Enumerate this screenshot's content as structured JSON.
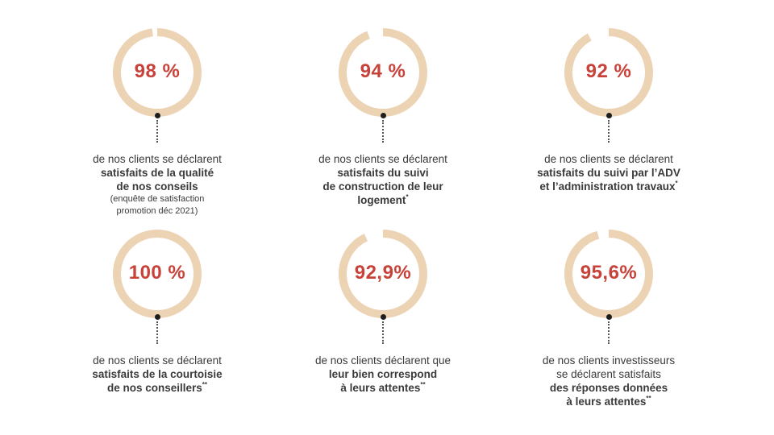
{
  "colors": {
    "ring": "#ecd3b3",
    "percent": "#c8423a",
    "text": "#3a3a3a",
    "connector": "#1e1e1e"
  },
  "stats": [
    {
      "percent_label": "98 %",
      "value": 98,
      "lines": [
        {
          "text": "de nos clients se déclarent",
          "bold": false
        },
        {
          "text": "satisfaits de la qualité",
          "bold": true
        },
        {
          "text": "de nos conseils",
          "bold": true
        }
      ],
      "note_lines": [
        "(enquête de satisfaction",
        "promotion déc 2021)"
      ]
    },
    {
      "percent_label": "94 %",
      "value": 94,
      "lines": [
        {
          "text": "de nos clients se déclarent",
          "bold": false
        },
        {
          "text": "satisfaits du suivi",
          "bold": true
        },
        {
          "text": "de construction de leur",
          "bold": true
        },
        {
          "text": "logement",
          "bold": true,
          "mark": "*"
        }
      ]
    },
    {
      "percent_label": "92 %",
      "value": 92,
      "lines": [
        {
          "text": "de nos clients se déclarent",
          "bold": false
        },
        {
          "text": "satisfaits du suivi par l’ADV",
          "bold": true
        },
        {
          "text": "et l’administration travaux",
          "bold": true,
          "mark": "*"
        }
      ]
    },
    {
      "percent_label": "100 %",
      "value": 100,
      "lines": [
        {
          "text": "de nos clients se déclarent",
          "bold": false
        },
        {
          "text": "satisfaits de la courtoisie",
          "bold": true
        },
        {
          "text": "de nos conseillers",
          "bold": true,
          "mark": "**"
        }
      ]
    },
    {
      "percent_label": "92,9%",
      "value": 92.9,
      "lines": [
        {
          "text": "de nos clients déclarent que",
          "bold": false
        },
        {
          "text": "leur bien correspond",
          "bold": true
        },
        {
          "text": "à leurs attentes",
          "bold": true,
          "mark": "**"
        }
      ]
    },
    {
      "percent_label": "95,6%",
      "value": 95.6,
      "lines": [
        {
          "text": "de nos clients investisseurs",
          "bold": false
        },
        {
          "text": "se déclarent satisfaits",
          "bold": false
        },
        {
          "text": "des réponses données",
          "bold": true
        },
        {
          "text": "à leurs attentes",
          "bold": true,
          "mark": "**"
        }
      ]
    }
  ]
}
